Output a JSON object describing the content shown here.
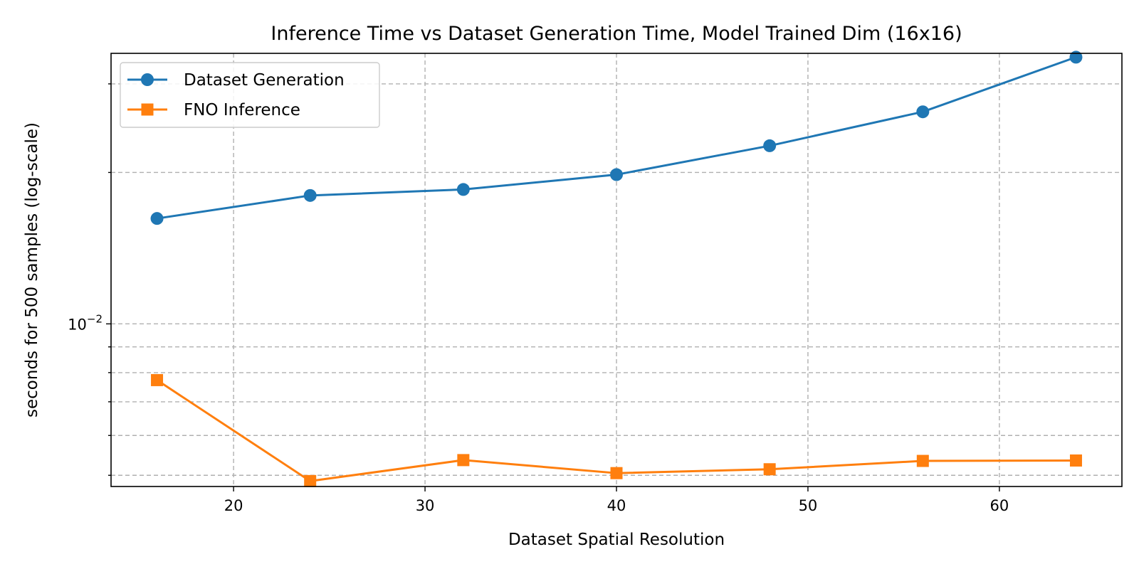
{
  "chart_data": {
    "type": "line",
    "title": "Inference Time vs Dataset Generation Time, Model Trained Dim (16x16)",
    "xlabel": "Dataset Spatial Resolution",
    "ylabel": "seconds for 500 samples (log-scale)",
    "yscale": "log",
    "xlim": [
      13.6,
      66.4
    ],
    "ylim": [
      0.00475,
      0.0345
    ],
    "x": [
      16,
      24,
      32,
      40,
      48,
      56,
      64
    ],
    "x_ticks": [
      20,
      30,
      40,
      50,
      60
    ],
    "y_major_ticks": [
      {
        "value": 0.01,
        "base": "10",
        "exponent": "−2"
      }
    ],
    "y_minor_ticks": [
      0.005,
      0.006,
      0.007,
      0.008,
      0.009,
      0.02,
      0.03
    ],
    "grid": true,
    "legend_position": "top-left",
    "series": [
      {
        "name": "Dataset Generation",
        "color": "#1f77b4",
        "marker": "circle",
        "values": [
          0.0162,
          0.018,
          0.0185,
          0.0198,
          0.0226,
          0.0264,
          0.0339
        ]
      },
      {
        "name": "FNO Inference",
        "color": "#ff7f0e",
        "marker": "square",
        "values": [
          0.00773,
          0.00487,
          0.00536,
          0.00505,
          0.00514,
          0.00534,
          0.00535
        ]
      }
    ]
  }
}
